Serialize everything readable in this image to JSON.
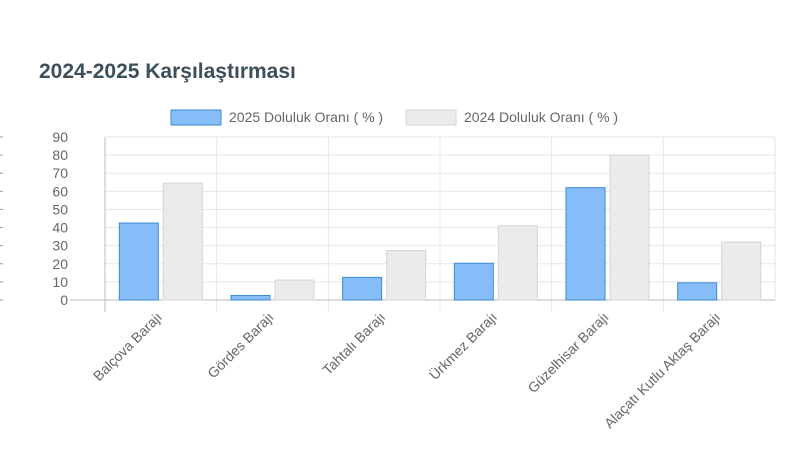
{
  "title": "2024-2025 Karşılaştırması",
  "chart_data": {
    "type": "bar",
    "categories": [
      "Balçova Barajı",
      "Gördes Barajı",
      "Tahtalı Barajı",
      "Ürkmez Barajı",
      "Güzelhisar Barajı",
      "Alaçatı Kutlu Aktaş Barajı"
    ],
    "series": [
      {
        "name": "2025 Doluluk Oranı ( % )",
        "values": [
          42.5,
          2.5,
          12.5,
          20.3,
          62,
          9.5
        ],
        "color": "#86bdf9",
        "stroke": "#3a8ad6"
      },
      {
        "name": "2024 Doluluk Oranı ( % )",
        "values": [
          64.5,
          11,
          27.3,
          41,
          80,
          32
        ],
        "color": "#ebebeb",
        "stroke": "#d4d4d4"
      }
    ],
    "yticks": [
      0,
      10,
      20,
      30,
      40,
      50,
      60,
      70,
      80,
      90
    ],
    "ylim": [
      0,
      90
    ],
    "legend_position": "top",
    "grid": true
  }
}
